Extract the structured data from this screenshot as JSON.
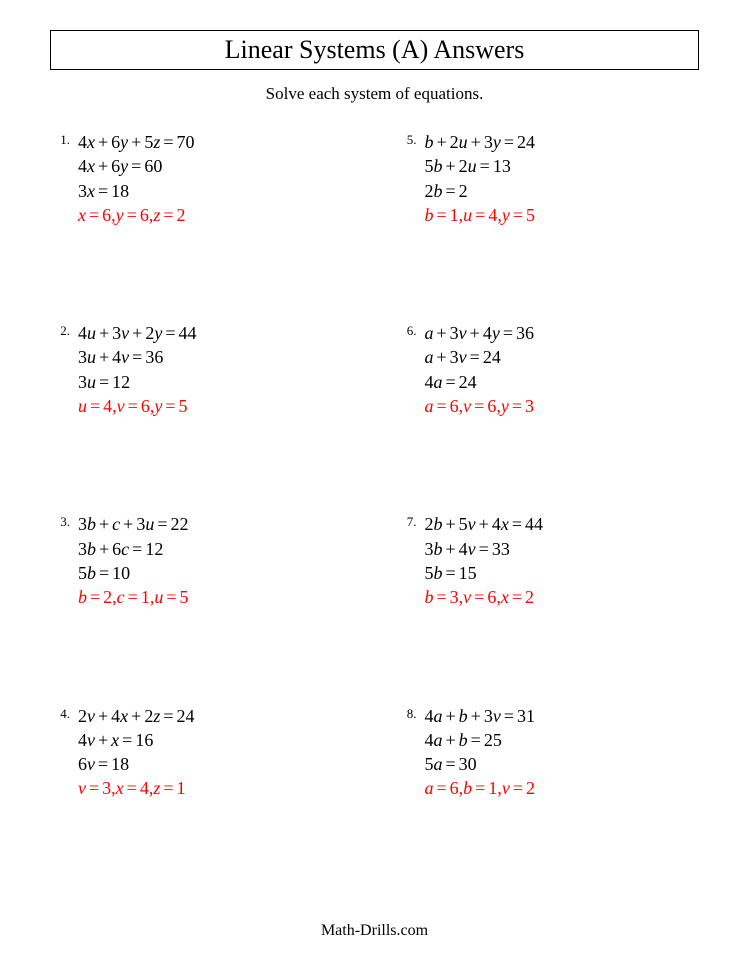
{
  "title": "Linear Systems (A) Answers",
  "subtitle": "Solve each system of equations.",
  "footer": "Math-Drills.com",
  "colors": {
    "answer": "#ff0000",
    "text": "#000000",
    "background": "#ffffff"
  },
  "typography": {
    "title_fontsize": 26,
    "subtitle_fontsize": 17,
    "equation_fontsize": 18,
    "number_fontsize": 13,
    "font_family": "Times New Roman"
  },
  "problems": [
    {
      "number": "1.",
      "eq1": "4x + 6y + 5z = 70",
      "eq2": "4x + 6y = 60",
      "eq3": "3x = 18",
      "answer": "x = 6, y = 6, z = 2"
    },
    {
      "number": "5.",
      "eq1": "b + 2u + 3y = 24",
      "eq2": "5b + 2u = 13",
      "eq3": "2b = 2",
      "answer": "b = 1, u = 4, y = 5"
    },
    {
      "number": "2.",
      "eq1": "4u + 3v + 2y = 44",
      "eq2": "3u + 4v = 36",
      "eq3": "3u = 12",
      "answer": "u = 4, v = 6, y = 5"
    },
    {
      "number": "6.",
      "eq1": "a + 3v + 4y = 36",
      "eq2": "a + 3v = 24",
      "eq3": "4a = 24",
      "answer": "a = 6, v = 6, y = 3"
    },
    {
      "number": "3.",
      "eq1": "3b + c + 3u = 22",
      "eq2": "3b + 6c = 12",
      "eq3": "5b = 10",
      "answer": "b = 2, c = 1, u = 5"
    },
    {
      "number": "7.",
      "eq1": "2b + 5v + 4x = 44",
      "eq2": "3b + 4v = 33",
      "eq3": "5b = 15",
      "answer": "b = 3, v = 6, x = 2"
    },
    {
      "number": "4.",
      "eq1": "2v + 4x + 2z = 24",
      "eq2": "4v + x = 16",
      "eq3": "6v = 18",
      "answer": "v = 3, x = 4, z = 1"
    },
    {
      "number": "8.",
      "eq1": "4a + b + 3v = 31",
      "eq2": "4a + b = 25",
      "eq3": "5a = 30",
      "answer": "a = 6, b = 1, v = 2"
    }
  ]
}
